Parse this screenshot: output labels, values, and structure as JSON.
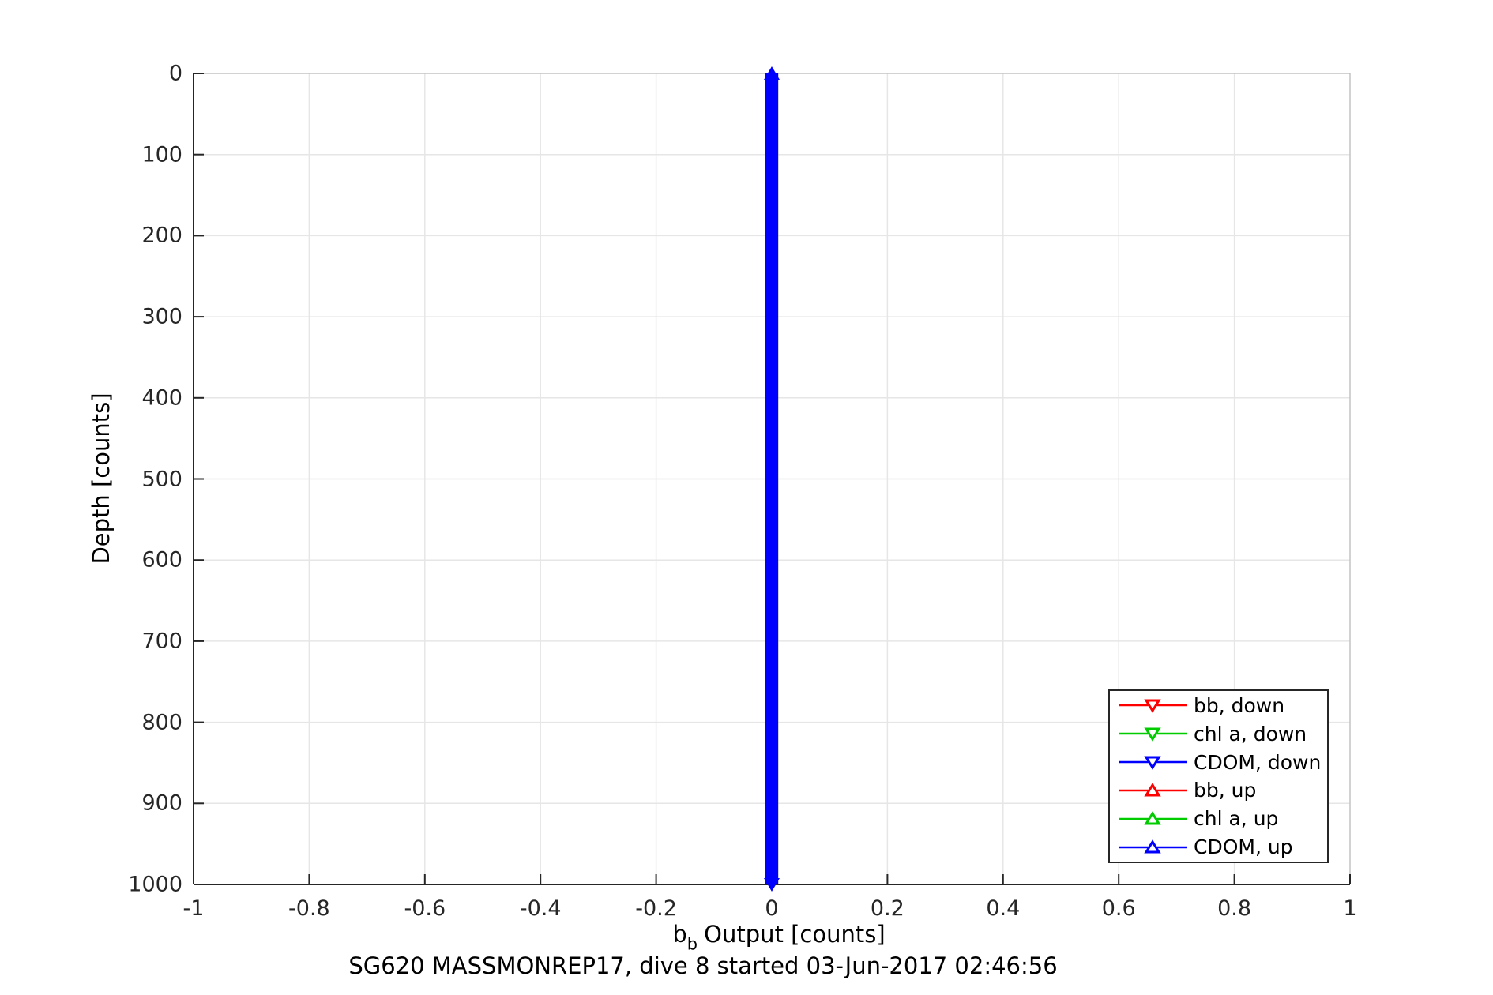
{
  "figure": {
    "background": "#ffffff",
    "axis_color": "#262626",
    "box_light_color": "#b3b3b3",
    "grid_color": "#e6e6e6",
    "text_color": "#000000"
  },
  "chart_data": {
    "type": "line",
    "title": "",
    "xlabel": {
      "prefix": "b",
      "sub": "b",
      "rest": "Output [counts]"
    },
    "footer": "SG620 MASSMONREP17, dive 8 started 03-Jun-2017 02:46:56",
    "ylabel": "Depth [counts]",
    "xlim": [
      -1,
      1
    ],
    "ylim": [
      0,
      1000
    ],
    "y_axis_reversed": true,
    "grid": true,
    "xticks": {
      "values": [
        -1,
        -0.8,
        -0.6,
        -0.4,
        -0.2,
        0,
        0.2,
        0.4,
        0.6,
        0.8,
        1
      ],
      "labels": [
        "-1",
        "-0.8",
        "-0.6",
        "-0.4",
        "-0.2",
        "0",
        "0.2",
        "0.4",
        "0.6",
        "0.8",
        "1"
      ]
    },
    "yticks": {
      "values": [
        0,
        100,
        200,
        300,
        400,
        500,
        600,
        700,
        800,
        900,
        1000
      ],
      "labels": [
        "0",
        "100",
        "200",
        "300",
        "400",
        "500",
        "600",
        "700",
        "800",
        "900",
        "1000"
      ]
    },
    "series": [
      {
        "name": "bb, down",
        "color": "#ff0000",
        "marker": "triangle-down",
        "x_mean": 0,
        "x_noise_halfwidth": 0.011,
        "depth_start": 0,
        "depth_end": 1000
      },
      {
        "name": "chl a, down",
        "color": "#00cc00",
        "marker": "triangle-down",
        "x_mean": 0,
        "x_noise_halfwidth": 0.011,
        "depth_start": 0,
        "depth_end": 1000
      },
      {
        "name": "CDOM, down",
        "color": "#0000ff",
        "marker": "triangle-down",
        "x_mean": 0,
        "x_noise_halfwidth": 0.011,
        "depth_start": 0,
        "depth_end": 1000
      },
      {
        "name": "bb, up",
        "color": "#ff0000",
        "marker": "triangle-up",
        "x_mean": 0,
        "x_noise_halfwidth": 0.011,
        "depth_start": 0,
        "depth_end": 1000
      },
      {
        "name": "chl a, up",
        "color": "#00cc00",
        "marker": "triangle-up",
        "x_mean": 0,
        "x_noise_halfwidth": 0.011,
        "depth_start": 0,
        "depth_end": 1000
      },
      {
        "name": "CDOM, up",
        "color": "#0000ff",
        "marker": "triangle-up",
        "x_mean": 0,
        "x_noise_halfwidth": 0.011,
        "depth_start": 0,
        "depth_end": 1000
      }
    ],
    "band_markers": {
      "top": "triangle-up",
      "bottom": "triangle-down",
      "color": "#0000ff"
    },
    "legend": {
      "position": "bottom-right",
      "entries": [
        {
          "label": "bb, down",
          "color": "#ff0000",
          "marker": "triangle-down"
        },
        {
          "label": "chl a, down",
          "color": "#00cc00",
          "marker": "triangle-down"
        },
        {
          "label": "CDOM, down",
          "color": "#0000ff",
          "marker": "triangle-down"
        },
        {
          "label": "bb, up",
          "color": "#ff0000",
          "marker": "triangle-up"
        },
        {
          "label": "chl a, up",
          "color": "#00cc00",
          "marker": "triangle-up"
        },
        {
          "label": "CDOM, up",
          "color": "#0000ff",
          "marker": "triangle-up"
        }
      ]
    }
  }
}
